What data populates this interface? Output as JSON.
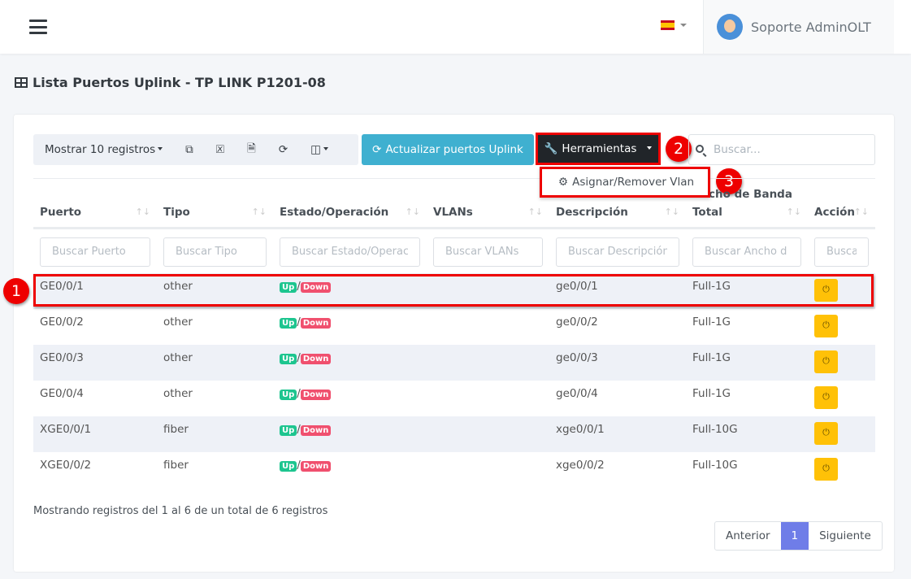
{
  "topbar": {
    "user_name": "Soporte AdminOLT",
    "language": "es"
  },
  "page_title": "Lista Puertos Uplink - TP LINK P1201-08",
  "toolbar": {
    "show_records": "Mostrar 10 registros",
    "update_button": "Actualizar puertos Uplink",
    "tools_button": "Herramientas",
    "search_placeholder": "Buscar...",
    "dropdown_item": "Asignar/Remover Vlan"
  },
  "annotations": [
    "1",
    "2",
    "3"
  ],
  "table": {
    "group_header": "Ancho de Banda",
    "columns": [
      "Puerto",
      "Tipo",
      "Estado/Operación",
      "VLANs",
      "Descripción",
      "Total",
      "Acción"
    ],
    "filters": [
      "Buscar Puerto",
      "Buscar Tipo",
      "Buscar Estado/Operac",
      "Buscar VLANs",
      "Buscar Descripción",
      "Buscar Ancho d",
      "Buscar Acción"
    ],
    "rows": [
      {
        "puerto": "GE0/0/1",
        "tipo": "other",
        "up": "Up",
        "down": "Down",
        "vlans": "",
        "descripcion": "ge0/0/1",
        "total": "Full-1G"
      },
      {
        "puerto": "GE0/0/2",
        "tipo": "other",
        "up": "Up",
        "down": "Down",
        "vlans": "",
        "descripcion": "ge0/0/2",
        "total": "Full-1G"
      },
      {
        "puerto": "GE0/0/3",
        "tipo": "other",
        "up": "Up",
        "down": "Down",
        "vlans": "",
        "descripcion": "ge0/0/3",
        "total": "Full-1G"
      },
      {
        "puerto": "GE0/0/4",
        "tipo": "other",
        "up": "Up",
        "down": "Down",
        "vlans": "",
        "descripcion": "ge0/0/4",
        "total": "Full-1G"
      },
      {
        "puerto": "XGE0/0/1",
        "tipo": "fiber",
        "up": "Up",
        "down": "Down",
        "vlans": "",
        "descripcion": "xge0/0/1",
        "total": "Full-10G"
      },
      {
        "puerto": "XGE0/0/2",
        "tipo": "fiber",
        "up": "Up",
        "down": "Down",
        "vlans": "",
        "descripcion": "xge0/0/2",
        "total": "Full-10G"
      }
    ]
  },
  "footer": {
    "info": "Mostrando registros del 1 al 6 de un total de 6 registros",
    "prev": "Anterior",
    "page": "1",
    "next": "Siguiente"
  }
}
